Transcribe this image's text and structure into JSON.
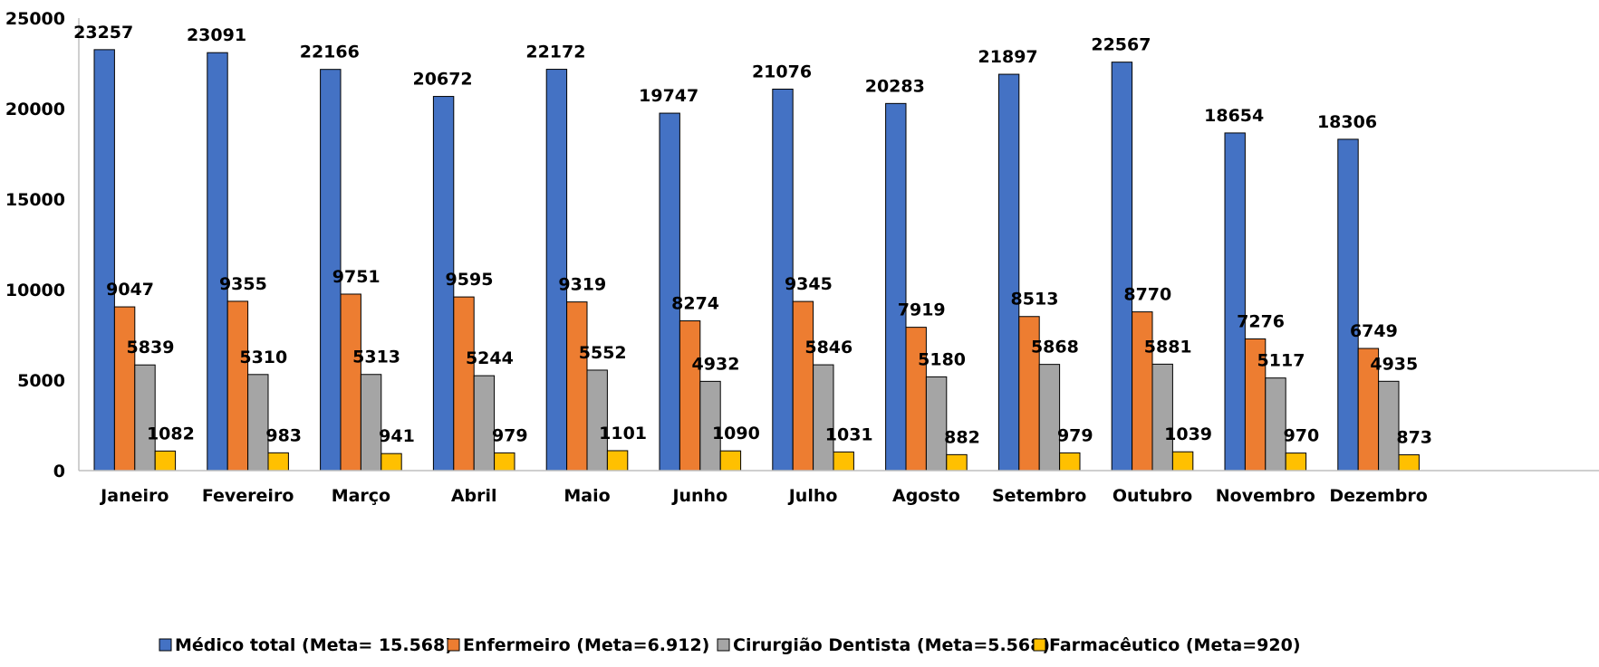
{
  "chart_data": {
    "type": "bar",
    "categories": [
      "Janeiro",
      "Fevereiro",
      "Março",
      "Abril",
      "Maio",
      "Junho",
      "Julho",
      "Agosto",
      "Setembro",
      "Outubro",
      "Novembro",
      "Dezembro"
    ],
    "series": [
      {
        "name": "Médico total (Meta= 15.568)",
        "color": "#4472C4",
        "values": [
          23257,
          23091,
          22166,
          20672,
          22172,
          19747,
          21076,
          20283,
          21897,
          22567,
          18654,
          18306
        ]
      },
      {
        "name": "Enfermeiro (Meta=6.912)",
        "color": "#ED7D31",
        "values": [
          9047,
          9355,
          9751,
          9595,
          9319,
          8274,
          9345,
          7919,
          8513,
          8770,
          7276,
          6749
        ]
      },
      {
        "name": "Cirurgião Dentista (Meta=5.568)",
        "color": "#A5A5A5",
        "values": [
          5839,
          5310,
          5313,
          5244,
          5552,
          4932,
          5846,
          5180,
          5868,
          5881,
          5117,
          4935
        ]
      },
      {
        "name": "Farmacêutico (Meta=920)",
        "color": "#FFC000",
        "values": [
          1082,
          983,
          941,
          979,
          1101,
          1090,
          1031,
          882,
          979,
          1039,
          970,
          873
        ]
      }
    ],
    "ylim": [
      0,
      25000
    ],
    "yticks": [
      0,
      5000,
      10000,
      15000,
      20000,
      25000
    ],
    "grid": false,
    "legend_position": "bottom",
    "data_labels": true
  }
}
